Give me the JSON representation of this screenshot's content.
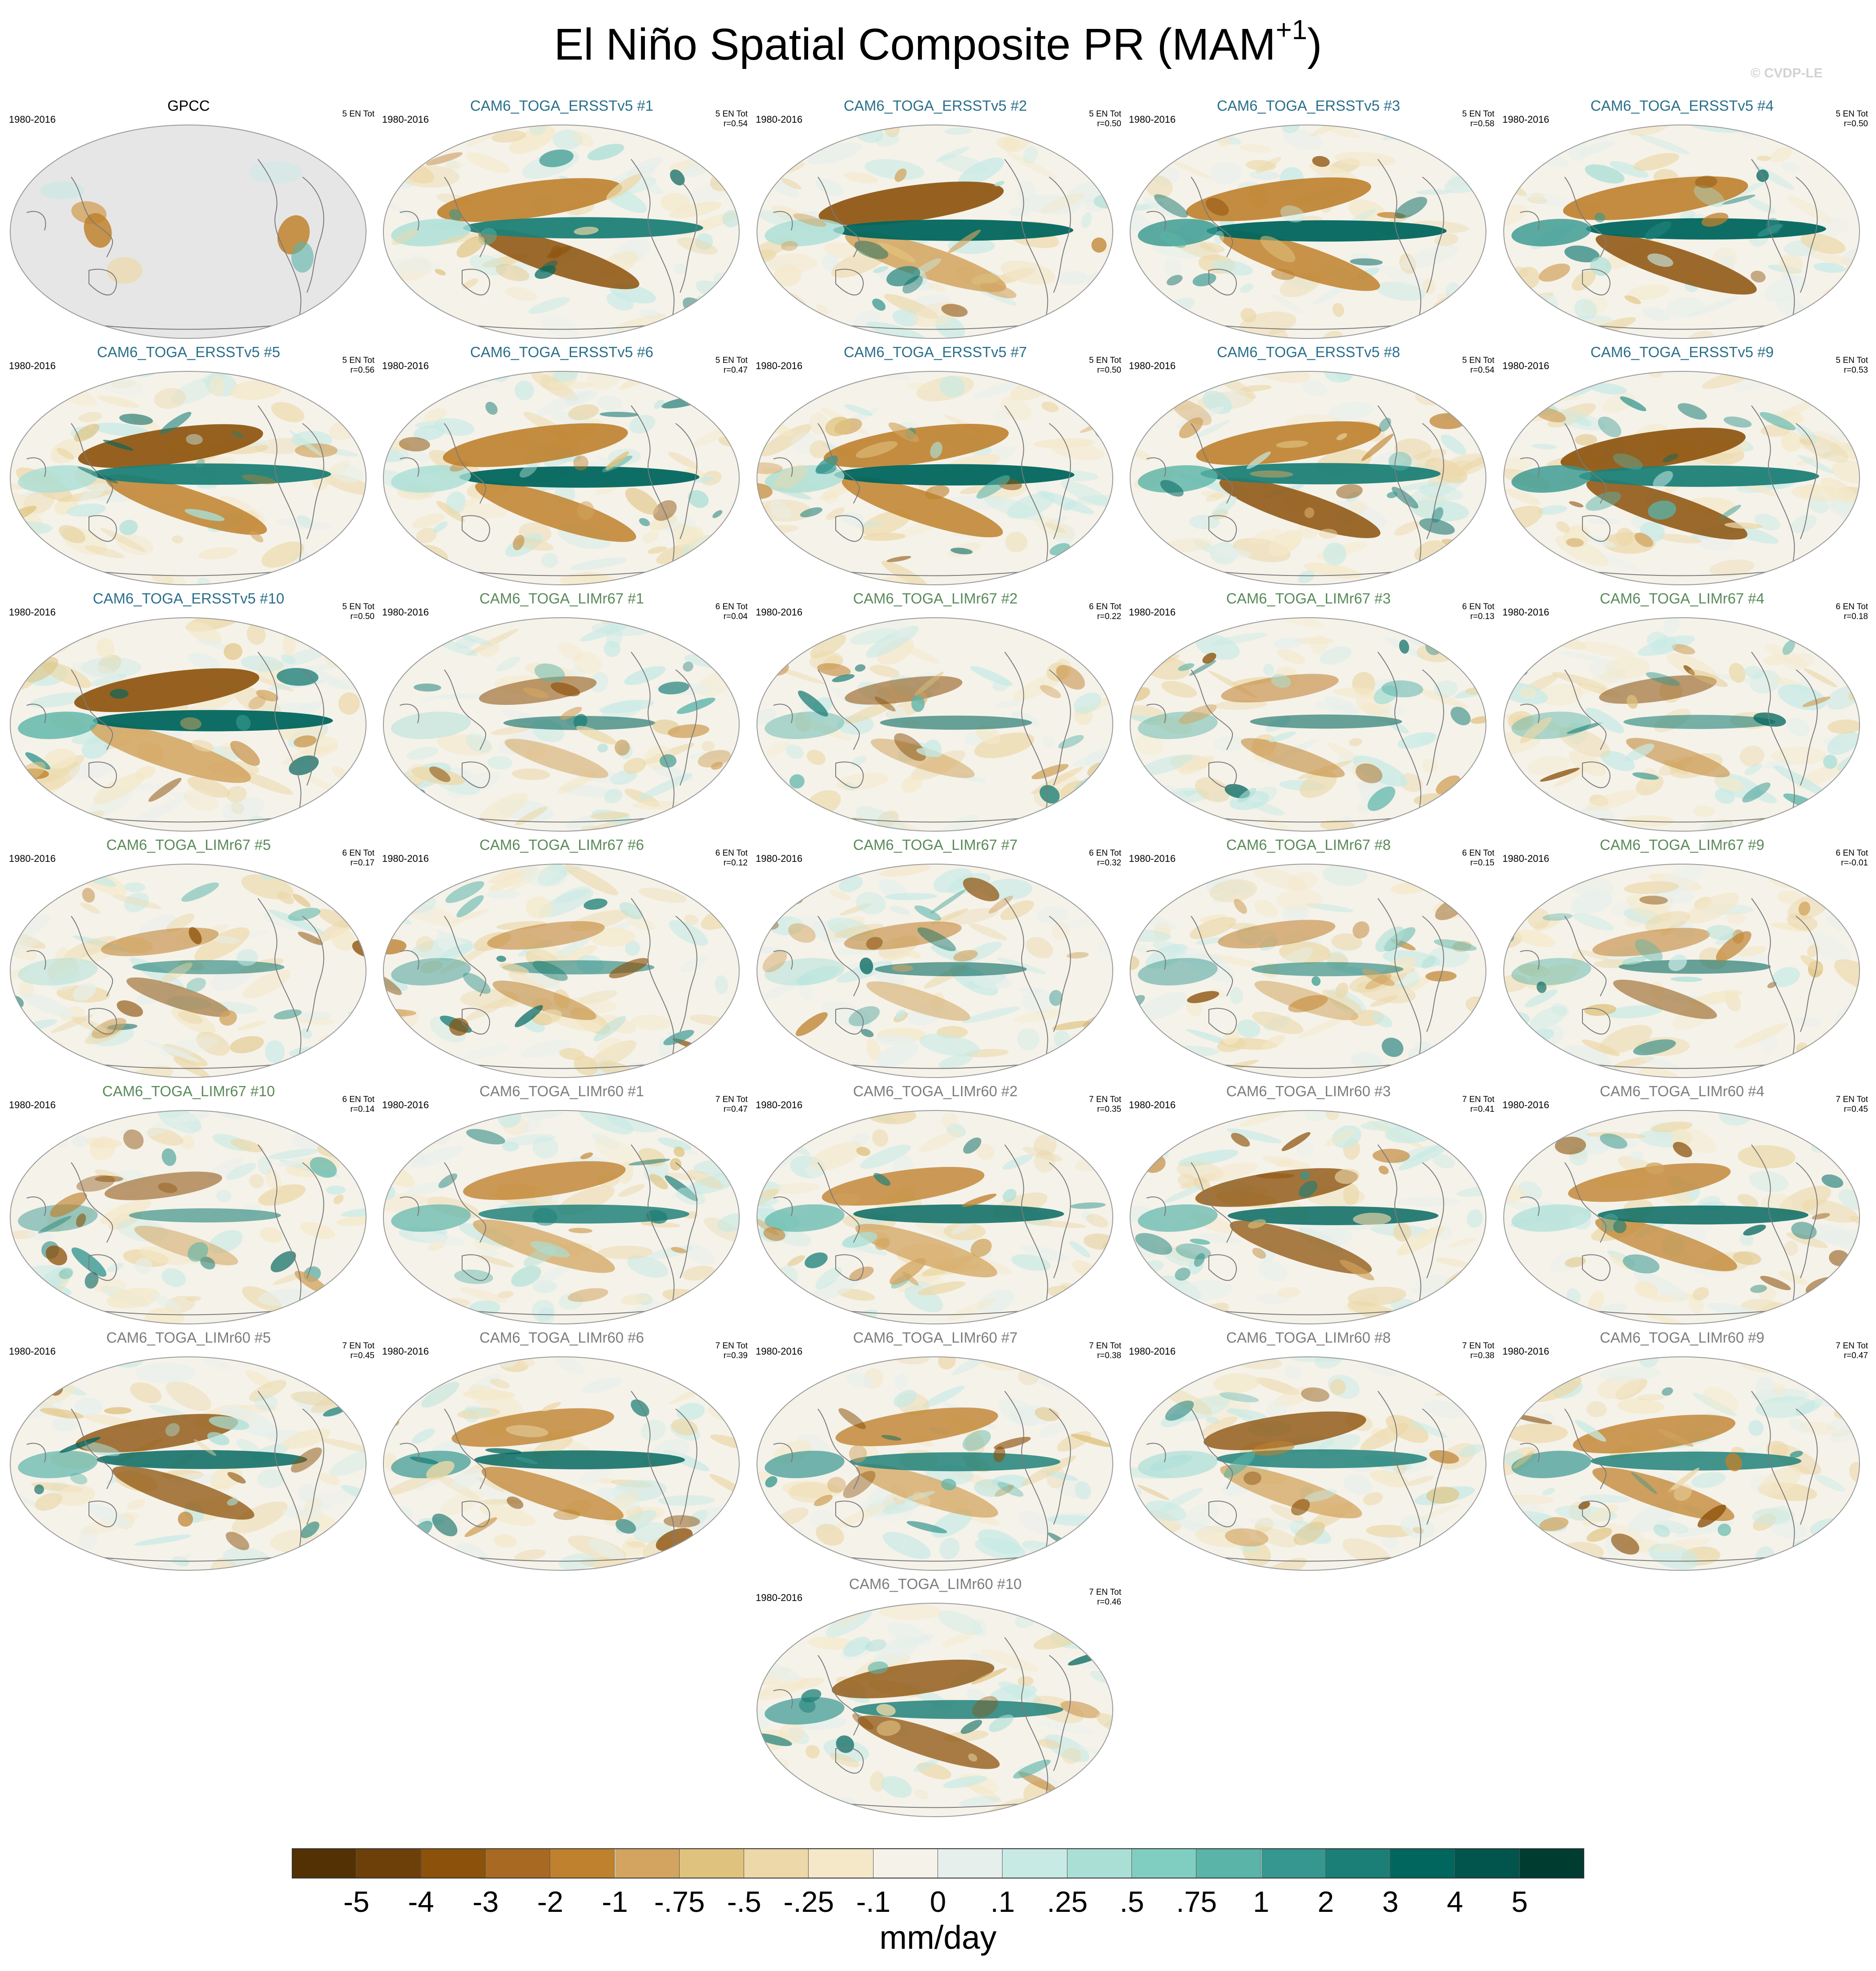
{
  "figure": {
    "title_main": "El Niño Spatial Composite PR (MAM",
    "title_sup": "+1",
    "title_end": ")",
    "watermark": "© CVDP-LE",
    "units": "mm/day"
  },
  "colors": {
    "ersst_title": "#2a6f8a",
    "limr67_title": "#5a8a5a",
    "limr60_title": "#7d7d7d",
    "obs_title": "#000000",
    "land_mask": "#e6e6e6",
    "coastline": "#7a7a7a"
  },
  "panels": [
    {
      "title": "GPCC",
      "group": "obs",
      "years": "1980-2016",
      "events": "5 EN Tot",
      "r": ""
    },
    {
      "title": "CAM6_TOGA_ERSSTv5 #1",
      "group": "ersst",
      "years": "1980-2016",
      "events": "5 EN Tot",
      "r": "r=0.54"
    },
    {
      "title": "CAM6_TOGA_ERSSTv5 #2",
      "group": "ersst",
      "years": "1980-2016",
      "events": "5 EN Tot",
      "r": "r=0.50"
    },
    {
      "title": "CAM6_TOGA_ERSSTv5 #3",
      "group": "ersst",
      "years": "1980-2016",
      "events": "5 EN Tot",
      "r": "r=0.58"
    },
    {
      "title": "CAM6_TOGA_ERSSTv5 #4",
      "group": "ersst",
      "years": "1980-2016",
      "events": "5 EN Tot",
      "r": "r=0.50"
    },
    {
      "title": "CAM6_TOGA_ERSSTv5 #5",
      "group": "ersst",
      "years": "1980-2016",
      "events": "5 EN Tot",
      "r": "r=0.56"
    },
    {
      "title": "CAM6_TOGA_ERSSTv5 #6",
      "group": "ersst",
      "years": "1980-2016",
      "events": "5 EN Tot",
      "r": "r=0.47"
    },
    {
      "title": "CAM6_TOGA_ERSSTv5 #7",
      "group": "ersst",
      "years": "1980-2016",
      "events": "5 EN Tot",
      "r": "r=0.50"
    },
    {
      "title": "CAM6_TOGA_ERSSTv5 #8",
      "group": "ersst",
      "years": "1980-2016",
      "events": "5 EN Tot",
      "r": "r=0.54"
    },
    {
      "title": "CAM6_TOGA_ERSSTv5 #9",
      "group": "ersst",
      "years": "1980-2016",
      "events": "5 EN Tot",
      "r": "r=0.53"
    },
    {
      "title": "CAM6_TOGA_ERSSTv5 #10",
      "group": "ersst",
      "years": "1980-2016",
      "events": "5 EN Tot",
      "r": "r=0.50"
    },
    {
      "title": "CAM6_TOGA_LIMr67 #1",
      "group": "limr67",
      "years": "1980-2016",
      "events": "6 EN Tot",
      "r": "r=0.04"
    },
    {
      "title": "CAM6_TOGA_LIMr67 #2",
      "group": "limr67",
      "years": "1980-2016",
      "events": "6 EN Tot",
      "r": "r=0.22"
    },
    {
      "title": "CAM6_TOGA_LIMr67 #3",
      "group": "limr67",
      "years": "1980-2016",
      "events": "6 EN Tot",
      "r": "r=0.13"
    },
    {
      "title": "CAM6_TOGA_LIMr67 #4",
      "group": "limr67",
      "years": "1980-2016",
      "events": "6 EN Tot",
      "r": "r=0.18"
    },
    {
      "title": "CAM6_TOGA_LIMr67 #5",
      "group": "limr67",
      "years": "1980-2016",
      "events": "6 EN Tot",
      "r": "r=0.17"
    },
    {
      "title": "CAM6_TOGA_LIMr67 #6",
      "group": "limr67",
      "years": "1980-2016",
      "events": "6 EN Tot",
      "r": "r=0.12"
    },
    {
      "title": "CAM6_TOGA_LIMr67 #7",
      "group": "limr67",
      "years": "1980-2016",
      "events": "6 EN Tot",
      "r": "r=0.32"
    },
    {
      "title": "CAM6_TOGA_LIMr67 #8",
      "group": "limr67",
      "years": "1980-2016",
      "events": "6 EN Tot",
      "r": "r=0.15"
    },
    {
      "title": "CAM6_TOGA_LIMr67 #9",
      "group": "limr67",
      "years": "1980-2016",
      "events": "6 EN Tot",
      "r": "r=-0.01"
    },
    {
      "title": "CAM6_TOGA_LIMr67 #10",
      "group": "limr67",
      "years": "1980-2016",
      "events": "6 EN Tot",
      "r": "r=0.14"
    },
    {
      "title": "CAM6_TOGA_LIMr60 #1",
      "group": "limr60",
      "years": "1980-2016",
      "events": "7 EN Tot",
      "r": "r=0.47"
    },
    {
      "title": "CAM6_TOGA_LIMr60 #2",
      "group": "limr60",
      "years": "1980-2016",
      "events": "7 EN Tot",
      "r": "r=0.35"
    },
    {
      "title": "CAM6_TOGA_LIMr60 #3",
      "group": "limr60",
      "years": "1980-2016",
      "events": "7 EN Tot",
      "r": "r=0.41"
    },
    {
      "title": "CAM6_TOGA_LIMr60 #4",
      "group": "limr60",
      "years": "1980-2016",
      "events": "7 EN Tot",
      "r": "r=0.45"
    },
    {
      "title": "CAM6_TOGA_LIMr60 #5",
      "group": "limr60",
      "years": "1980-2016",
      "events": "7 EN Tot",
      "r": "r=0.45"
    },
    {
      "title": "CAM6_TOGA_LIMr60 #6",
      "group": "limr60",
      "years": "1980-2016",
      "events": "7 EN Tot",
      "r": "r=0.39"
    },
    {
      "title": "CAM6_TOGA_LIMr60 #7",
      "group": "limr60",
      "years": "1980-2016",
      "events": "7 EN Tot",
      "r": "r=0.38"
    },
    {
      "title": "CAM6_TOGA_LIMr60 #8",
      "group": "limr60",
      "years": "1980-2016",
      "events": "7 EN Tot",
      "r": "r=0.38"
    },
    {
      "title": "CAM6_TOGA_LIMr60 #9",
      "group": "limr60",
      "years": "1980-2016",
      "events": "7 EN Tot",
      "r": "r=0.47"
    },
    {
      "title": "CAM6_TOGA_LIMr60 #10",
      "group": "limr60",
      "years": "1980-2016",
      "events": "7 EN Tot",
      "r": "r=0.46"
    }
  ],
  "colorbar": {
    "colors": [
      "#543005",
      "#6e4009",
      "#8c510a",
      "#a86a22",
      "#bf812d",
      "#d2a45f",
      "#dfc27d",
      "#ecd8a8",
      "#f4e8c8",
      "#f5f2ea",
      "#e6efeb",
      "#c7eae5",
      "#aadfd6",
      "#80cdc1",
      "#5ab4a8",
      "#35978f",
      "#1c7f77",
      "#01665e",
      "#01554d",
      "#003c30"
    ],
    "labels": [
      "-5",
      "-4",
      "-3",
      "-2",
      "-1",
      "-.75",
      "-.5",
      "-.25",
      "-.1",
      "0",
      ".1",
      ".25",
      ".5",
      ".75",
      "1",
      "2",
      "3",
      "4",
      "5"
    ]
  }
}
